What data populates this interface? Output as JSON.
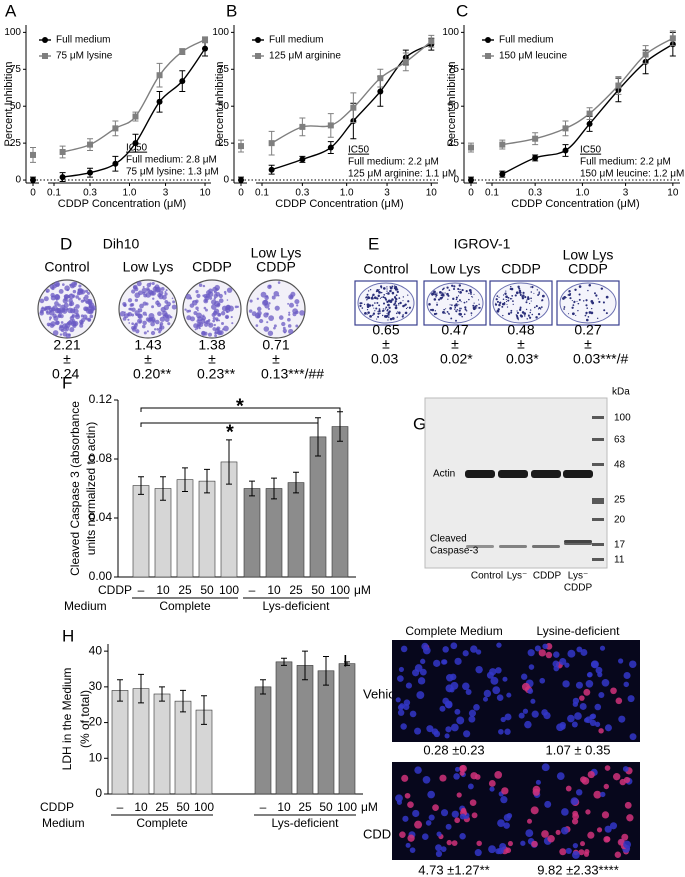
{
  "chart_data": [
    {
      "label": "A",
      "type": "line",
      "xlabel": "CDDP Concentration (μM)",
      "ylabel": "Percent Inhibition",
      "log_x": true,
      "x": [
        0,
        0.13,
        0.3,
        0.65,
        1.2,
        2.5,
        5,
        10
      ],
      "xlim": [
        0,
        12
      ],
      "xticks": [
        0,
        0.1,
        0.3,
        {
          "value": 1,
          "label": "1.0"
        },
        3,
        10
      ],
      "ylim": [
        -2,
        105
      ],
      "yticks": [
        0,
        25,
        50,
        75,
        100
      ],
      "zero_line": true,
      "series": [
        {
          "name": "Full medium",
          "color": "#000000",
          "marker": "circle",
          "values": [
            0,
            2,
            5,
            11,
            25,
            53,
            67,
            89
          ],
          "errors": [
            2,
            3,
            3,
            5,
            6,
            7,
            7,
            5
          ]
        },
        {
          "name": "75 μM lysine",
          "color": "#7f7f7f",
          "marker": "square",
          "values": [
            17,
            19,
            24,
            35,
            43,
            71,
            87,
            95
          ],
          "errors": [
            5,
            4,
            4,
            5,
            3,
            8,
            2,
            2
          ]
        }
      ],
      "annotations": [
        "IC50",
        "Full medium: 2.8 μM",
        "75 μM lysine: 1.3 μM"
      ]
    },
    {
      "label": "B",
      "type": "line",
      "xlabel": "CDDP Concentration (μM)",
      "ylabel": "Percent Inhibition",
      "log_x": true,
      "x": [
        0,
        0.13,
        0.3,
        0.65,
        1.2,
        2.5,
        5,
        10
      ],
      "xlim": [
        0,
        12
      ],
      "xticks": [
        0,
        0.1,
        0.3,
        {
          "value": 1,
          "label": "1.0"
        },
        3,
        10
      ],
      "ylim": [
        -2,
        105
      ],
      "yticks": [
        0,
        25,
        50,
        75,
        100
      ],
      "zero_line": true,
      "series": [
        {
          "name": "Full medium",
          "color": "#000000",
          "marker": "circle",
          "values": [
            0,
            7,
            14,
            22,
            40,
            60,
            83,
            92
          ],
          "errors": [
            2,
            3,
            2,
            4,
            12,
            10,
            5,
            4
          ]
        },
        {
          "name": "125 μM arginine",
          "color": "#7f7f7f",
          "marker": "square",
          "values": [
            23,
            25,
            36,
            37,
            49,
            69,
            80,
            94
          ],
          "errors": [
            4,
            8,
            6,
            8,
            10,
            6,
            6,
            4
          ]
        }
      ],
      "annotations": [
        "IC50",
        "Full medium: 2.2 μM",
        "125 μM arginine: 1.1 μM"
      ]
    },
    {
      "label": "C",
      "type": "line",
      "xlabel": "CDDP Concentration (μM)",
      "ylabel": "Percent Inhibition",
      "log_x": true,
      "x": [
        0,
        0.13,
        0.3,
        0.65,
        1.2,
        2.5,
        5,
        10
      ],
      "xlim": [
        0,
        12
      ],
      "xticks": [
        0,
        0.1,
        0.3,
        {
          "value": 1,
          "label": "1.0"
        },
        3,
        10
      ],
      "ylim": [
        -2,
        105
      ],
      "yticks": [
        0,
        25,
        50,
        75,
        100
      ],
      "zero_line": true,
      "series": [
        {
          "name": "Full medium",
          "color": "#000000",
          "marker": "circle",
          "values": [
            0,
            4,
            15,
            20,
            38,
            61,
            80,
            92
          ],
          "errors": [
            2,
            2,
            2,
            4,
            5,
            8,
            8,
            8
          ]
        },
        {
          "name": "150 μM leucine",
          "color": "#7f7f7f",
          "marker": "square",
          "values": [
            22,
            24,
            28,
            35,
            45,
            64,
            85,
            96
          ],
          "errors": [
            3,
            3,
            4,
            5,
            4,
            6,
            6,
            5
          ]
        }
      ],
      "annotations": [
        "IC50",
        "Full medium: 2.2 μM",
        "150 μM leucine: 1.2 μM"
      ]
    },
    {
      "label": "F",
      "type": "bar",
      "ylabel": [
        "Cleaved Caspase 3 (absorbance",
        "units normalized to actin)"
      ],
      "categories": [
        "–",
        "10",
        "25",
        "50",
        "100"
      ],
      "row_labels": [
        "CDDP",
        "Medium"
      ],
      "unit": "μM",
      "ylim": [
        0,
        0.12
      ],
      "yticks": [
        {
          "value": 0,
          "label": "0.00"
        },
        0.04,
        0.08,
        0.12
      ],
      "series": [
        {
          "name": "Complete",
          "color": "#d6d6d6",
          "values": [
            0.062,
            0.06,
            0.066,
            0.065,
            0.078
          ],
          "errors": [
            0.006,
            0.008,
            0.008,
            0.008,
            0.015
          ]
        },
        {
          "name": "Lys-deficient",
          "color": "#8c8c8c",
          "values": [
            0.06,
            0.06,
            0.064,
            0.095,
            0.102
          ],
          "errors": [
            0.005,
            0.007,
            0.007,
            0.013,
            0.01
          ]
        }
      ],
      "annotations": [
        "*",
        "*"
      ]
    },
    {
      "label": "H",
      "type": "bar",
      "ylabel": [
        "LDH in the Medium",
        "(% of total)"
      ],
      "categories": [
        "–",
        "10",
        "25",
        "50",
        "100"
      ],
      "row_labels": [
        "CDDP",
        "Medium"
      ],
      "unit": "μM",
      "ylim": [
        0,
        42
      ],
      "yticks": [
        0,
        10,
        20,
        30,
        40
      ],
      "series": [
        {
          "name": "Complete",
          "color": "#d6d6d6",
          "values": [
            29,
            29.5,
            28,
            26,
            23.5
          ],
          "errors": [
            3,
            4,
            2,
            3,
            4
          ]
        },
        {
          "name": "Lys-deficient",
          "color": "#8c8c8c",
          "values": [
            30,
            37,
            36,
            34.5,
            36.5
          ],
          "errors": [
            2,
            1,
            4,
            4,
            0.5
          ]
        }
      ]
    }
  ],
  "colony_assays": [
    {
      "label": "D",
      "title": "Dih10",
      "columns": [
        {
          "name": [
            "Control"
          ],
          "mean": "2.21",
          "pm": "±",
          "sd": "0.24"
        },
        {
          "name": [
            "Low Lys"
          ],
          "mean": "1.43",
          "pm": "±",
          "sd": "0.20**"
        },
        {
          "name": [
            "CDDP"
          ],
          "mean": "1.38",
          "pm": "±",
          "sd": "0.23**"
        },
        {
          "name": [
            "Low Lys",
            "CDDP"
          ],
          "mean": "0.71",
          "pm": "±",
          "sd": "0.13***/##"
        }
      ]
    },
    {
      "label": "E",
      "title": "IGROV-1",
      "columns": [
        {
          "name": [
            "Control"
          ],
          "mean": "0.65",
          "pm": "±",
          "sd": "0.03"
        },
        {
          "name": [
            "Low Lys"
          ],
          "mean": "0.47",
          "pm": "±",
          "sd": "0.02*"
        },
        {
          "name": [
            "CDDP"
          ],
          "mean": "0.48",
          "pm": "±",
          "sd": "0.03*"
        },
        {
          "name": [
            "Low Lys",
            "CDDP"
          ],
          "mean": "0.27",
          "pm": "±",
          "sd": "0.03***/#"
        }
      ]
    }
  ],
  "western_blot": {
    "label": "G",
    "unit": "kDa",
    "markers": [
      "100",
      "63",
      "48",
      "25",
      "20",
      "17",
      "11"
    ],
    "bands": [
      [
        "Actin"
      ],
      [
        "Cleaved",
        "Caspase-3"
      ]
    ],
    "lanes": [
      [
        "Control"
      ],
      [
        "Lys⁻"
      ],
      [
        "CDDP"
      ],
      [
        "Lys⁻",
        "CDDP"
      ]
    ]
  },
  "imaging": {
    "label": "I",
    "columns": [
      "Complete Medium",
      "Lysine-deficient"
    ],
    "rows": [
      "Vehicle",
      "CDDP"
    ],
    "values": [
      [
        "0.28 ±0.23",
        "1.07 ± 0.35"
      ],
      [
        "4.73 ±1.27**",
        "9.82 ±2.33****"
      ]
    ]
  }
}
